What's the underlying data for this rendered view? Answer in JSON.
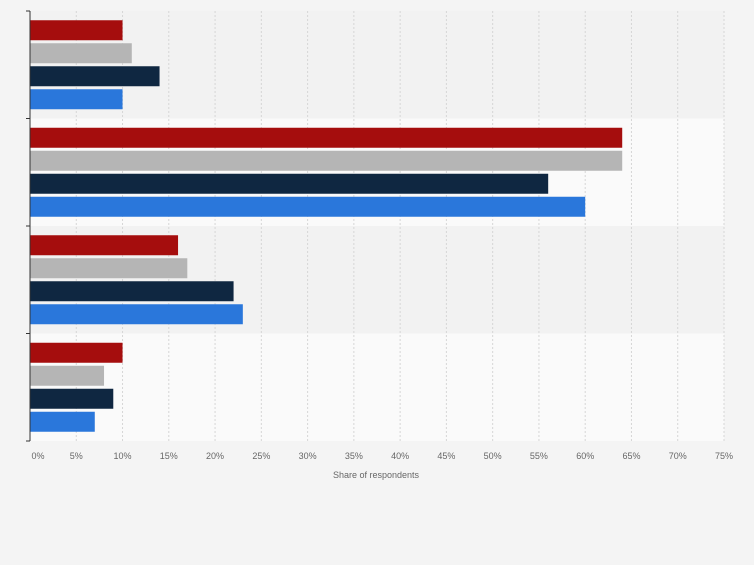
{
  "chart_data": {
    "type": "bar",
    "orientation": "horizontal",
    "categories": [
      "",
      "",
      "",
      ""
    ],
    "series": [
      {
        "values": [
          10,
          64,
          16,
          10
        ],
        "color": "#a50d0d"
      },
      {
        "values": [
          11,
          64,
          17,
          8
        ],
        "color": "#b5b5b5"
      },
      {
        "values": [
          14,
          56,
          22,
          9
        ],
        "color": "#0f2741"
      },
      {
        "values": [
          10,
          60,
          23,
          7
        ],
        "color": "#2a77db"
      }
    ],
    "xlabel": "Share of respondents",
    "ylabel": "",
    "xlim": [
      0,
      75
    ],
    "xticks": [
      0,
      5,
      10,
      15,
      20,
      25,
      30,
      35,
      40,
      45,
      50,
      55,
      60,
      65,
      70,
      75
    ],
    "tick_suffix": "%",
    "grid": "vertical-dashed",
    "legend": "none",
    "band_colors": [
      "#f2f2f2",
      "#fafafa"
    ]
  }
}
